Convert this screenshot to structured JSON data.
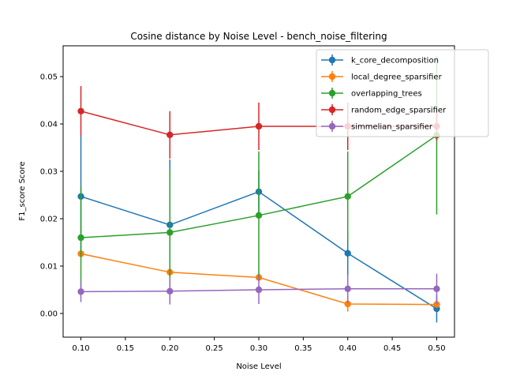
{
  "chart_data": {
    "type": "line",
    "title": "Cosine distance by Noise Level - bench_noise_filtering",
    "xlabel": "Noise Level",
    "ylabel": "F1_score Score",
    "xlim": [
      0.08,
      0.52
    ],
    "ylim": [
      -0.005,
      0.0565
    ],
    "x_ticks": [
      "0.10",
      "0.15",
      "0.20",
      "0.25",
      "0.30",
      "0.35",
      "0.40",
      "0.45",
      "0.50"
    ],
    "x_tick_values": [
      0.1,
      0.15,
      0.2,
      0.25,
      0.3,
      0.35,
      0.4,
      0.45,
      0.5
    ],
    "y_ticks": [
      "0.00",
      "0.01",
      "0.02",
      "0.03",
      "0.04",
      "0.05"
    ],
    "y_tick_values": [
      0.0,
      0.01,
      0.02,
      0.03,
      0.04,
      0.05
    ],
    "grid": false,
    "legend_position": "top-right",
    "x": [
      0.1,
      0.2,
      0.3,
      0.4,
      0.5
    ],
    "series": [
      {
        "name": "k_core_decomposition",
        "color": "#1f77b4",
        "values": [
          0.0247,
          0.0187,
          0.0257,
          0.0127,
          0.001
        ],
        "yerr": [
          0.0128,
          0.0138,
          0.0045,
          0.0047,
          0.0029
        ]
      },
      {
        "name": "local_degree_sparsifier",
        "color": "#ff7f0e",
        "values": [
          0.0126,
          0.0087,
          0.0076,
          0.002,
          0.0019
        ],
        "yerr": [
          0.0008,
          0.0008,
          0.0008,
          0.0016,
          0.0007
        ]
      },
      {
        "name": "overlapping_trees",
        "color": "#2ca02c",
        "values": [
          0.016,
          0.0171,
          0.0207,
          0.0247,
          0.0376
        ],
        "yerr": [
          0.0108,
          0.0132,
          0.0135,
          0.0095,
          0.0167
        ]
      },
      {
        "name": "random_edge_sparsifier",
        "color": "#d62728",
        "values": [
          0.0427,
          0.0377,
          0.0395,
          0.0395,
          0.0395
        ],
        "yerr": [
          0.0053,
          0.005,
          0.005,
          0.005,
          0.003
        ]
      },
      {
        "name": "simmelian_sparsifier",
        "color": "#9467bd",
        "values": [
          0.0046,
          0.0047,
          0.005,
          0.0052,
          0.0052
        ],
        "yerr": [
          0.0022,
          0.0028,
          0.003,
          0.003,
          0.0032
        ]
      }
    ]
  }
}
